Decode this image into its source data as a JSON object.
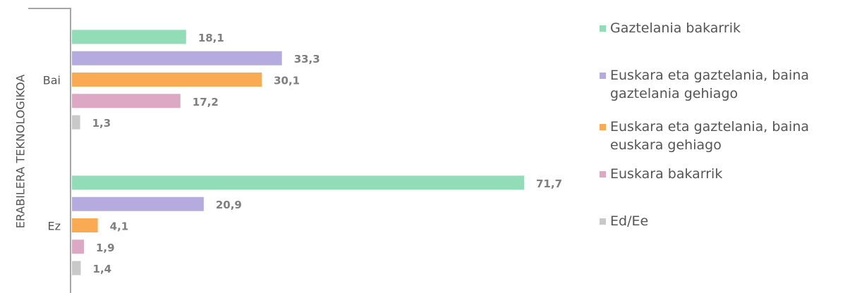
{
  "chart_data": {
    "type": "hbar",
    "y_axis_label": "ERABILERA TEKNOLOGIKOA",
    "categories": [
      "Bai",
      "Ez"
    ],
    "series": [
      {
        "name": "Gaztelania bakarrik",
        "color": "#93dcb8",
        "values": [
          18.1,
          71.7
        ],
        "value_labels": [
          "18,1",
          "71,7"
        ]
      },
      {
        "name": "Euskara eta gaztelania, baina gaztelania gehiago",
        "color": "#b5abdf",
        "values": [
          33.3,
          20.9
        ],
        "value_labels": [
          "33,3",
          "20,9"
        ]
      },
      {
        "name": "Euskara eta gaztelania, baina euskara gehiago",
        "color": "#f9aa52",
        "values": [
          30.1,
          4.1
        ],
        "value_labels": [
          "30,1",
          "4,1"
        ]
      },
      {
        "name": "Euskara bakarrik",
        "color": "#dca8c4",
        "values": [
          17.2,
          1.9
        ],
        "value_labels": [
          "17,2",
          "1,9"
        ]
      },
      {
        "name": "Ed/Ee",
        "color": "#c9c9c9",
        "values": [
          1.3,
          1.4
        ],
        "value_labels": [
          "1,3",
          "1,4"
        ]
      }
    ]
  }
}
